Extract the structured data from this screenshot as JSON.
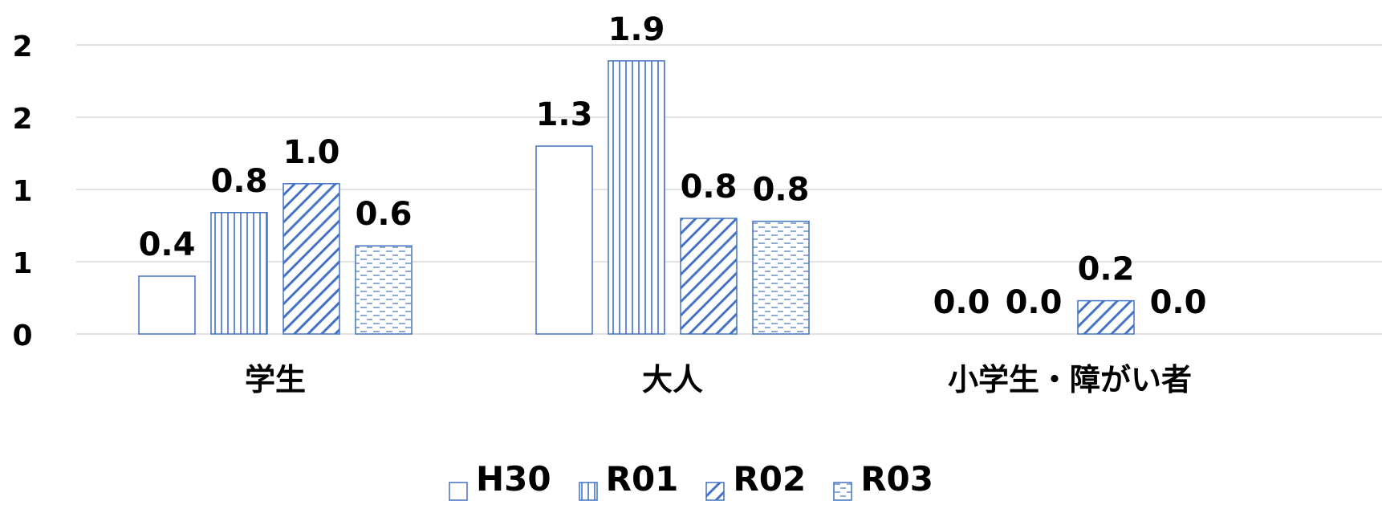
{
  "chart_data": {
    "type": "bar",
    "categories": [
      "学生",
      "大人",
      "小学生・障がい者"
    ],
    "series": [
      {
        "name": "H30",
        "values": [
          0.4,
          1.3,
          0.0
        ],
        "value_labels": [
          "0.4",
          "1.3",
          "0.0"
        ]
      },
      {
        "name": "R01",
        "values": [
          0.84,
          1.89,
          0.0
        ],
        "value_labels": [
          "0.8",
          "1.9",
          "0.0"
        ]
      },
      {
        "name": "R02",
        "values": [
          1.04,
          0.8,
          0.23
        ],
        "value_labels": [
          "1.0",
          "0.8",
          "0.2"
        ]
      },
      {
        "name": "R03",
        "values": [
          0.61,
          0.78,
          0.0
        ],
        "value_labels": [
          "0.6",
          "0.8",
          "0.0"
        ]
      }
    ],
    "y_tick_values": [
      0,
      0.5,
      1,
      1.5,
      2
    ],
    "y_tick_labels": [
      "0",
      "1",
      "1",
      "2",
      "2"
    ],
    "ylim": [
      0,
      2.0
    ],
    "grid": true,
    "legend_position": "bottom",
    "colors": {
      "stroke": "#4472C4",
      "grid": "#d9d9d9",
      "fill": "#ffffff"
    }
  }
}
